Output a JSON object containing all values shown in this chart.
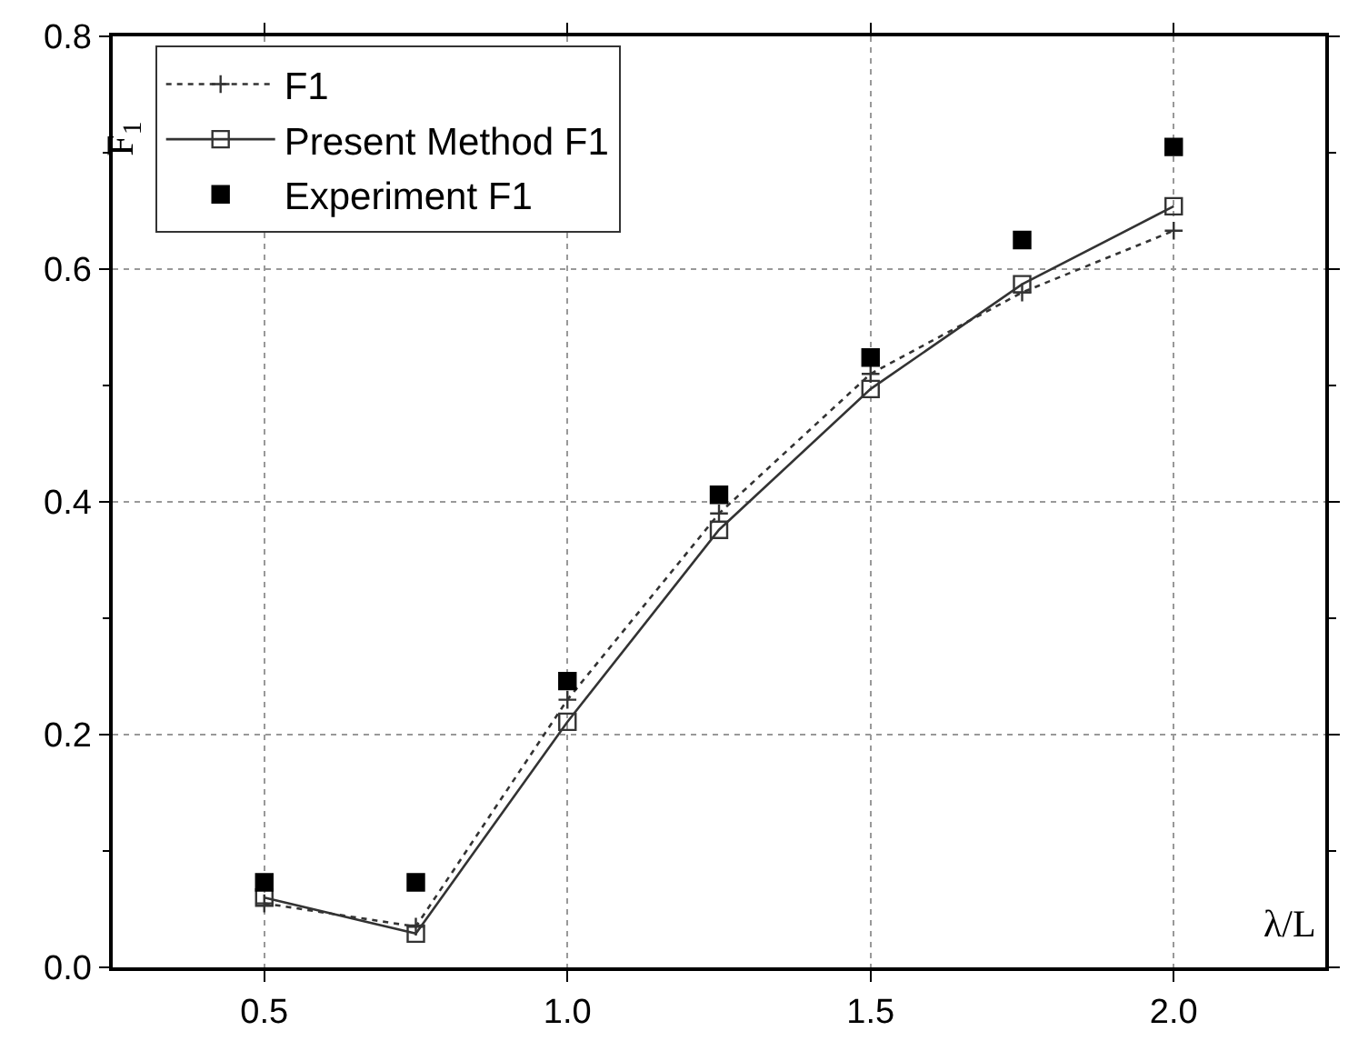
{
  "chart_data": {
    "type": "line",
    "xlabel": "λ/L",
    "ylabel": "F$_{1}$",
    "x": [
      0.5,
      0.75,
      1.0,
      1.25,
      1.5,
      1.75,
      2.0
    ],
    "series": [
      {
        "name": "F1",
        "color": "#333333",
        "line_style": "dotted",
        "marker": "cross",
        "values": [
          0.055,
          0.035,
          0.23,
          0.39,
          0.51,
          0.58,
          0.633
        ]
      },
      {
        "name": "Present Method F1",
        "color": "#333333",
        "line_style": "solid",
        "marker": "square-open",
        "values": [
          0.06,
          0.029,
          0.211,
          0.376,
          0.497,
          0.587,
          0.654
        ]
      },
      {
        "name": "Experiment F1",
        "color": "#000000",
        "type": "scatter",
        "marker": "square",
        "values": [
          0.073,
          0.073,
          0.246,
          0.406,
          0.524,
          0.625,
          0.705
        ]
      }
    ],
    "xlim": [
      0.25,
      2.25
    ],
    "xticks": [
      {
        "value": 0.5,
        "label": "0.5"
      },
      {
        "value": 1.0,
        "label": "1.0"
      },
      {
        "value": 1.5,
        "label": "1.5"
      },
      {
        "value": 2.0,
        "label": "2.0"
      }
    ],
    "ylim": [
      0,
      0.8
    ],
    "yticks": [
      {
        "value": 0,
        "label": "0.0"
      },
      {
        "value": 0.2,
        "label": "0.2"
      },
      {
        "value": 0.4,
        "label": "0.4"
      },
      {
        "value": 0.6,
        "label": "0.6"
      },
      {
        "value": 0.8,
        "label": "0.8"
      }
    ],
    "grid": true,
    "legend": "top left"
  }
}
